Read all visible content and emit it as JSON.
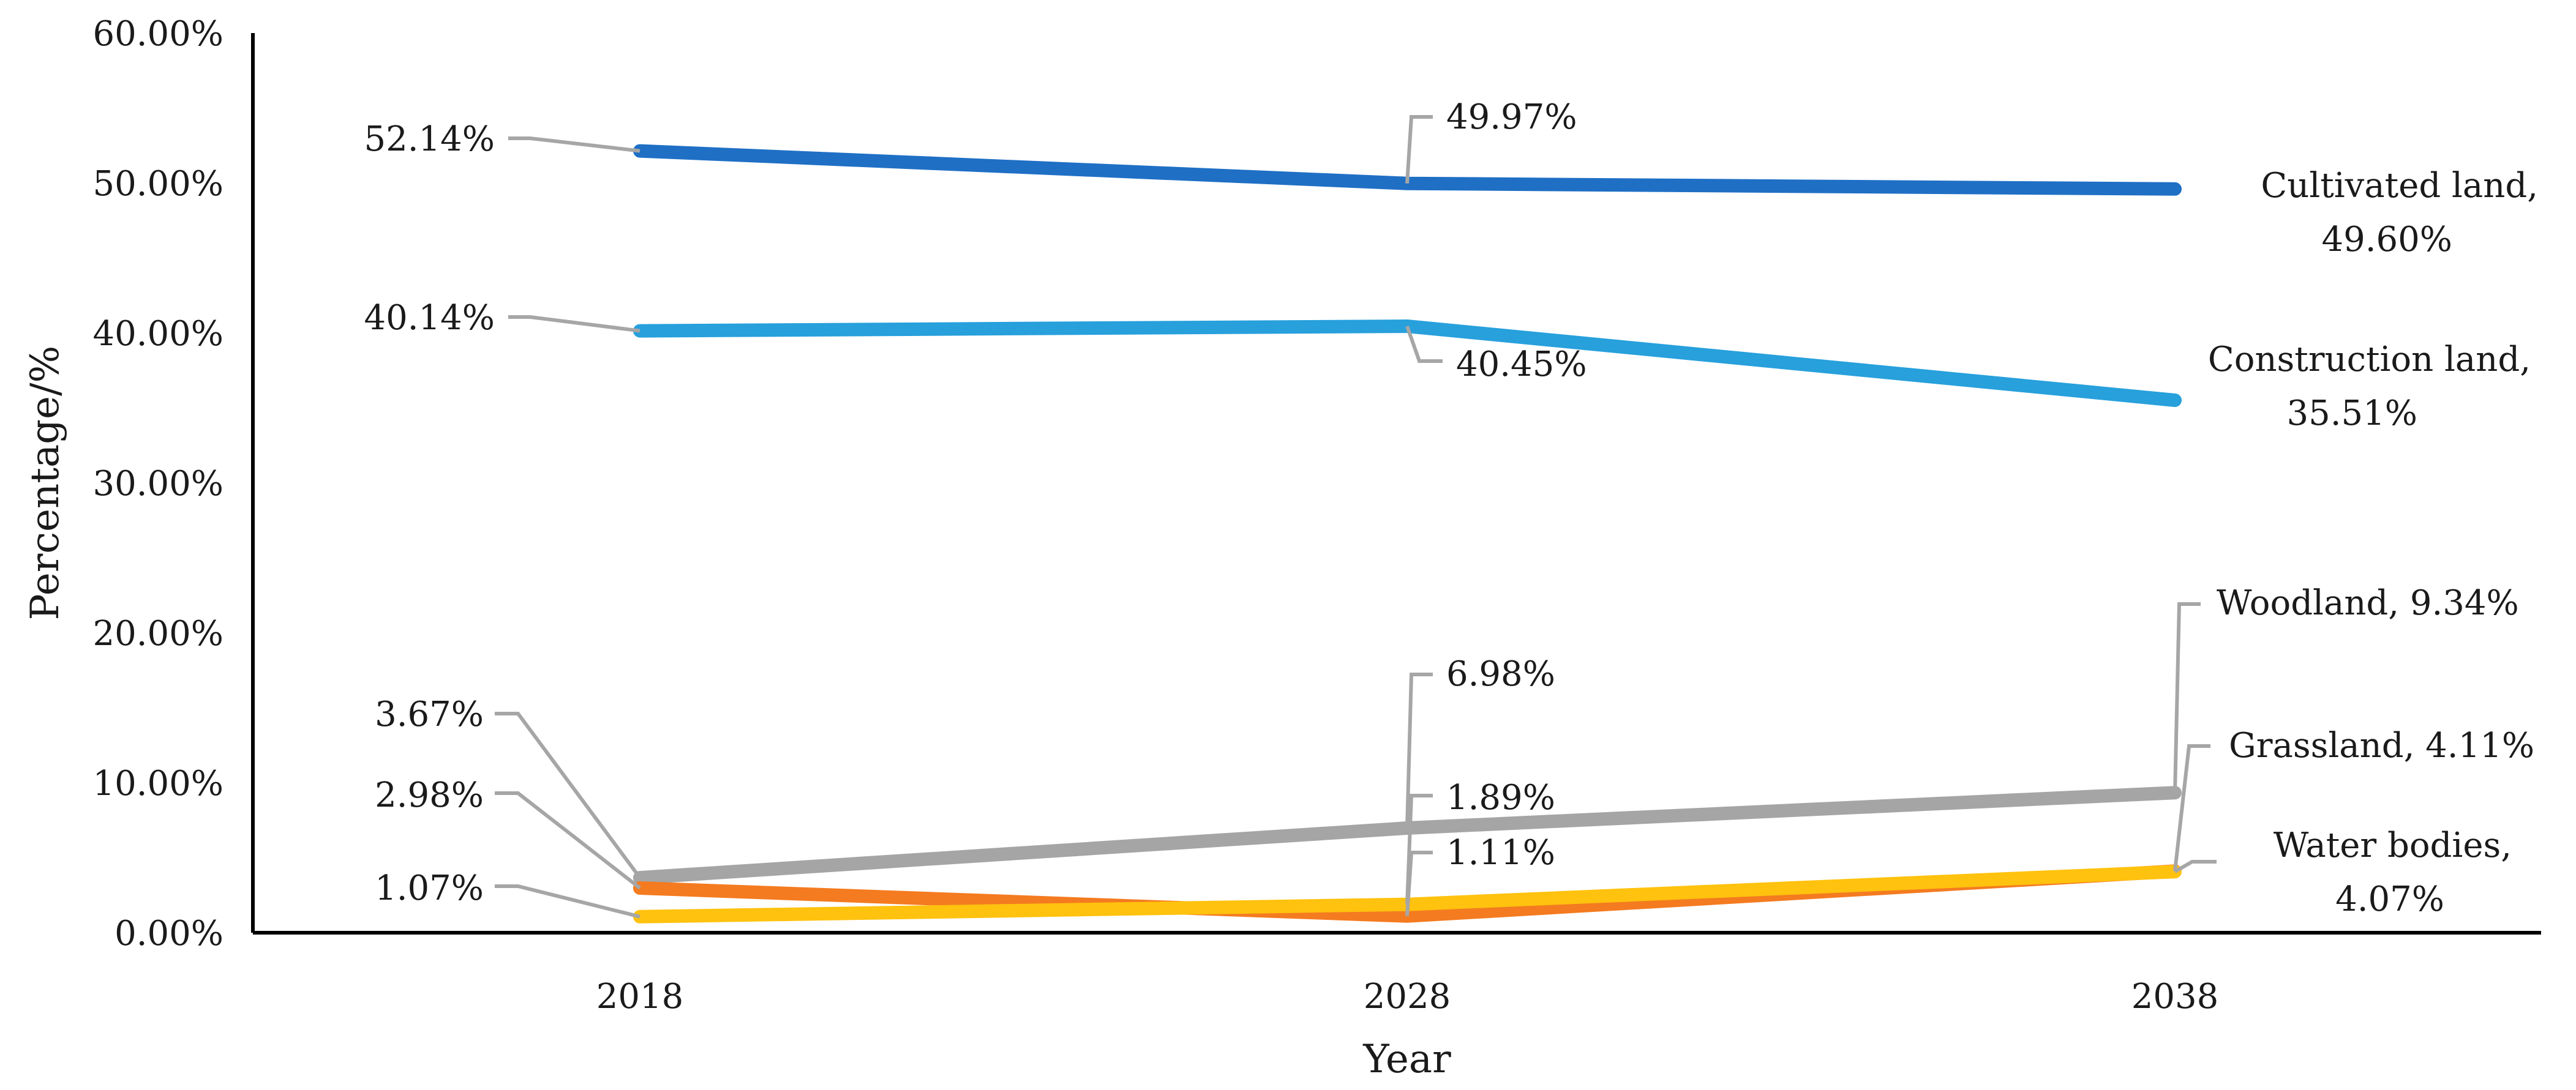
{
  "chart_data": {
    "type": "line",
    "title": "",
    "xlabel": "Year",
    "ylabel": "Percentage/%",
    "categories": [
      "2018",
      "2028",
      "2038"
    ],
    "ylim": [
      0,
      60
    ],
    "yticks": [
      "0.00%",
      "10.00%",
      "20.00%",
      "30.00%",
      "40.00%",
      "50.00%",
      "60.00%"
    ],
    "grid": false,
    "series": [
      {
        "name": "Cultivated land",
        "color": "#1f6fc5",
        "values": [
          52.14,
          49.97,
          49.6
        ],
        "labels": [
          "52.14%",
          "49.97%",
          "49.60%"
        ],
        "end_label_name": "Cultivated land,",
        "end_label_value": "49.60%"
      },
      {
        "name": "Construction land",
        "color": "#27a0dc",
        "values": [
          40.14,
          40.45,
          35.51
        ],
        "labels": [
          "40.14%",
          "40.45%",
          "35.51%"
        ],
        "end_label_name": "Construction land,",
        "end_label_value": "35.51%"
      },
      {
        "name": "Woodland",
        "color": "#a5a5a5",
        "values": [
          3.67,
          6.98,
          9.34
        ],
        "labels": [
          "3.67%",
          "6.98%",
          "9.34%"
        ],
        "end_label_name": "Woodland, 9.34%"
      },
      {
        "name": "Grassland",
        "color": "#f47b20",
        "values": [
          2.98,
          1.11,
          4.11
        ],
        "labels": [
          "2.98%",
          "1.11%",
          "4.11%"
        ],
        "end_label_name": "Grassland, 4.11%"
      },
      {
        "name": "Water bodies",
        "color": "#ffc20e",
        "values": [
          1.07,
          1.89,
          4.07
        ],
        "labels": [
          "1.07%",
          "1.89%",
          "4.07%"
        ],
        "end_label_name": "Water bodies,",
        "end_label_value": "4.07%"
      }
    ]
  }
}
